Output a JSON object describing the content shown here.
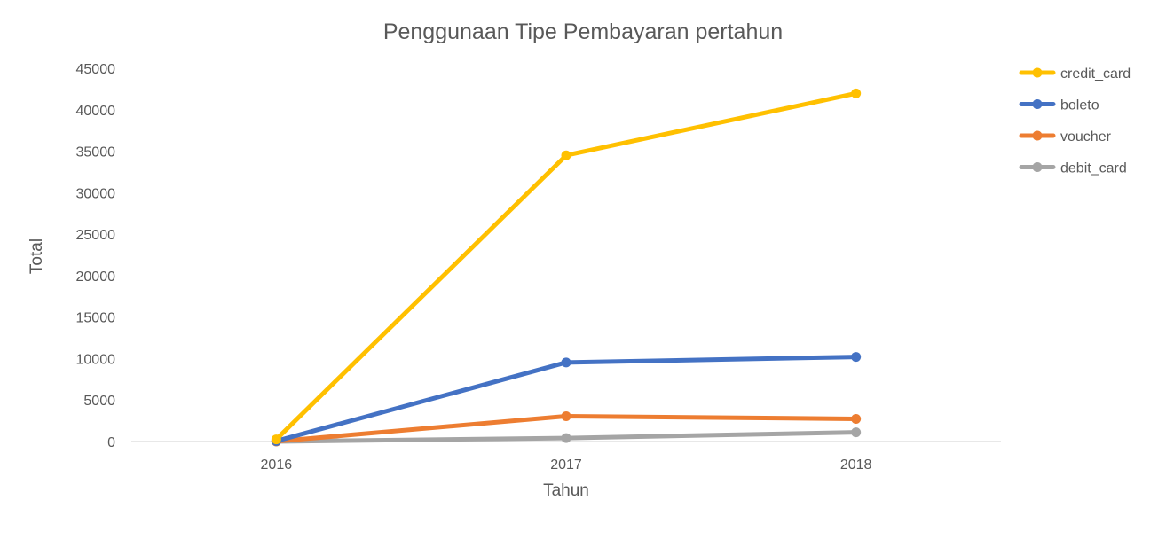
{
  "chart_data": {
    "type": "line",
    "title": "Penggunaan Tipe Pembayaran pertahun",
    "xlabel": "Tahun",
    "ylabel": "Total",
    "categories": [
      "2016",
      "2017",
      "2018"
    ],
    "ylim": [
      0,
      45000
    ],
    "yticks": [
      "0",
      "5000",
      "10000",
      "15000",
      "20000",
      "25000",
      "30000",
      "35000",
      "40000",
      "45000"
    ],
    "grid": false,
    "legend_position": "right",
    "series": [
      {
        "name": "credit_card",
        "color": "#FFC000",
        "values": [
          260,
          34500,
          41970
        ]
      },
      {
        "name": "boleto",
        "color": "#4472C4",
        "values": [
          60,
          9530,
          10200
        ]
      },
      {
        "name": "voucher",
        "color": "#ED7D31",
        "values": [
          20,
          3050,
          2730
        ]
      },
      {
        "name": "debit_card",
        "color": "#A5A5A5",
        "values": [
          5,
          420,
          1110
        ]
      }
    ]
  }
}
